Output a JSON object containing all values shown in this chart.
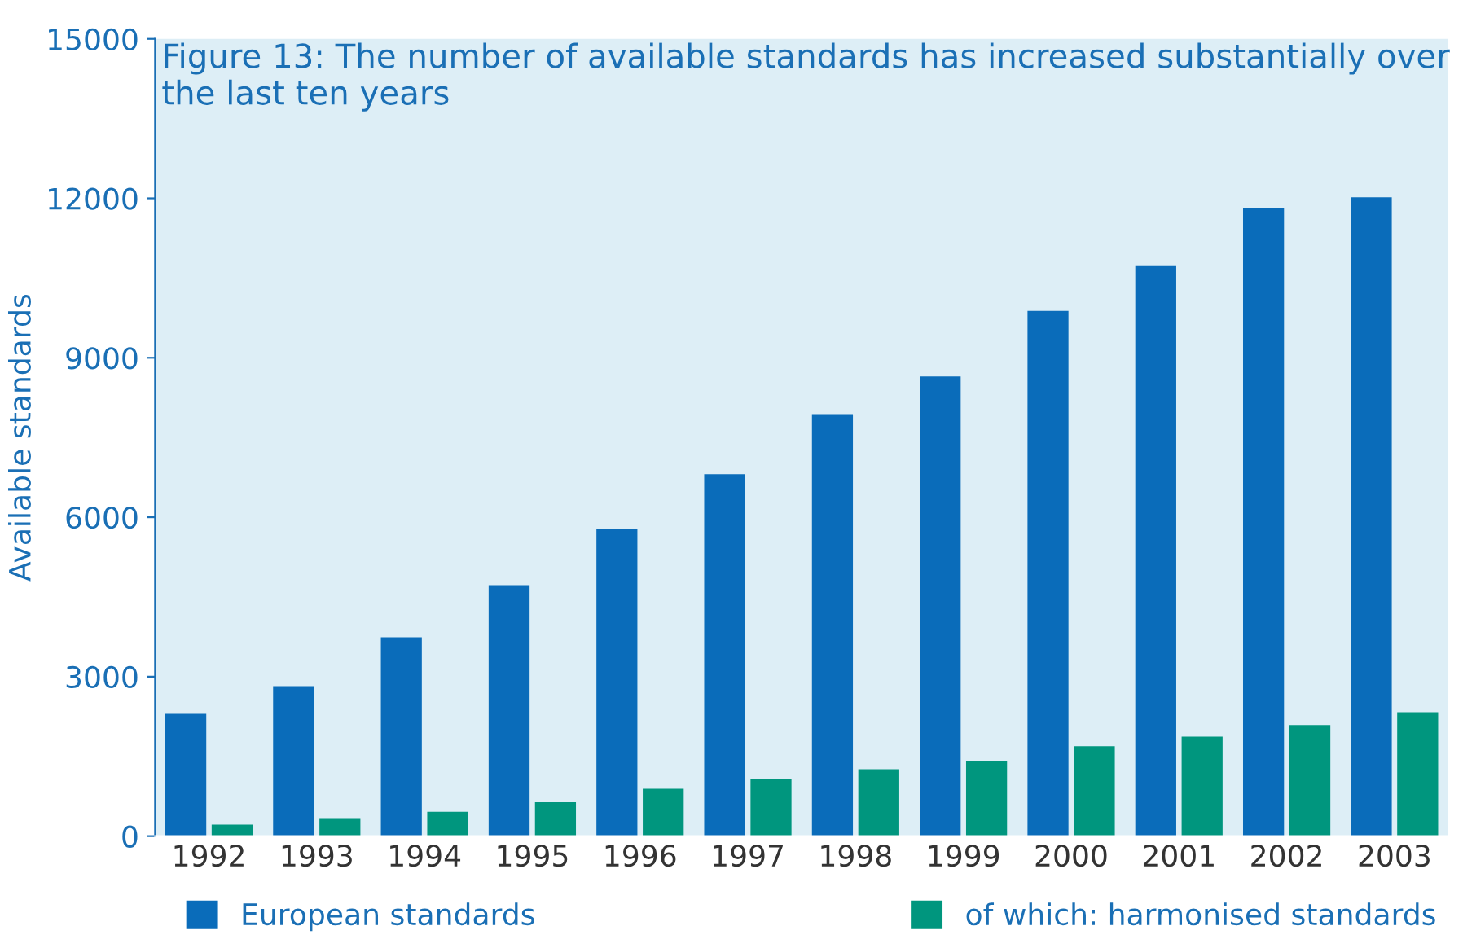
{
  "chart_data": {
    "type": "bar",
    "title": "Figure 13: The number of available standards has increased substantially over the last ten years",
    "ylabel": "Available standards",
    "categories": [
      "1992",
      "1993",
      "1994",
      "1995",
      "1996",
      "1997",
      "1998",
      "1999",
      "2000",
      "2001",
      "2002",
      "2003"
    ],
    "series": [
      {
        "name": "European standards",
        "color": "#0a6cba",
        "values": [
          2300,
          2820,
          3740,
          4720,
          5770,
          6810,
          7940,
          8650,
          9880,
          10740,
          11810,
          12020
        ]
      },
      {
        "name": "of which: harmonised standards",
        "color": "#00967e",
        "values": [
          215,
          340,
          460,
          640,
          890,
          1070,
          1260,
          1410,
          1690,
          1870,
          2090,
          2330
        ]
      }
    ],
    "ylim": [
      0,
      15000
    ],
    "yticks": [
      0,
      3000,
      6000,
      9000,
      12000,
      15000
    ],
    "grid": false,
    "legend": "bottom"
  }
}
